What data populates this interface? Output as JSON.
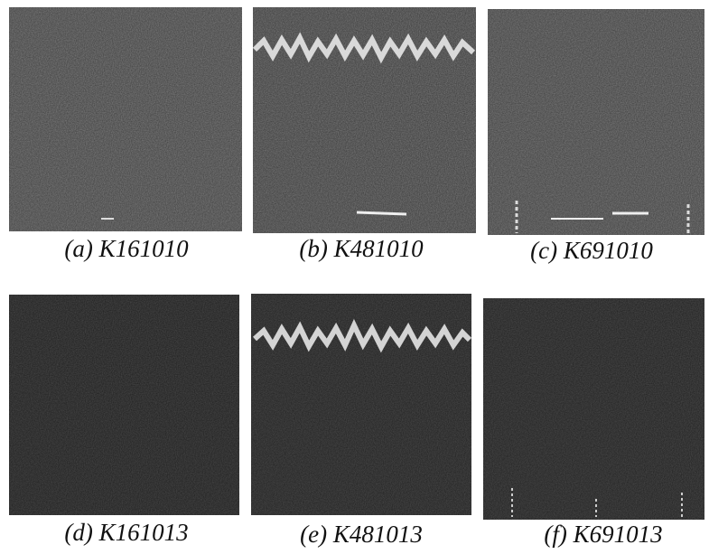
{
  "figure": {
    "panels": [
      {
        "caption": "(a) K161010"
      },
      {
        "caption": "(b) K481010"
      },
      {
        "caption": "(c) K691010"
      },
      {
        "caption": "(d) K161013"
      },
      {
        "caption": "(e) K481013"
      },
      {
        "caption": "(f) K691013"
      }
    ]
  }
}
